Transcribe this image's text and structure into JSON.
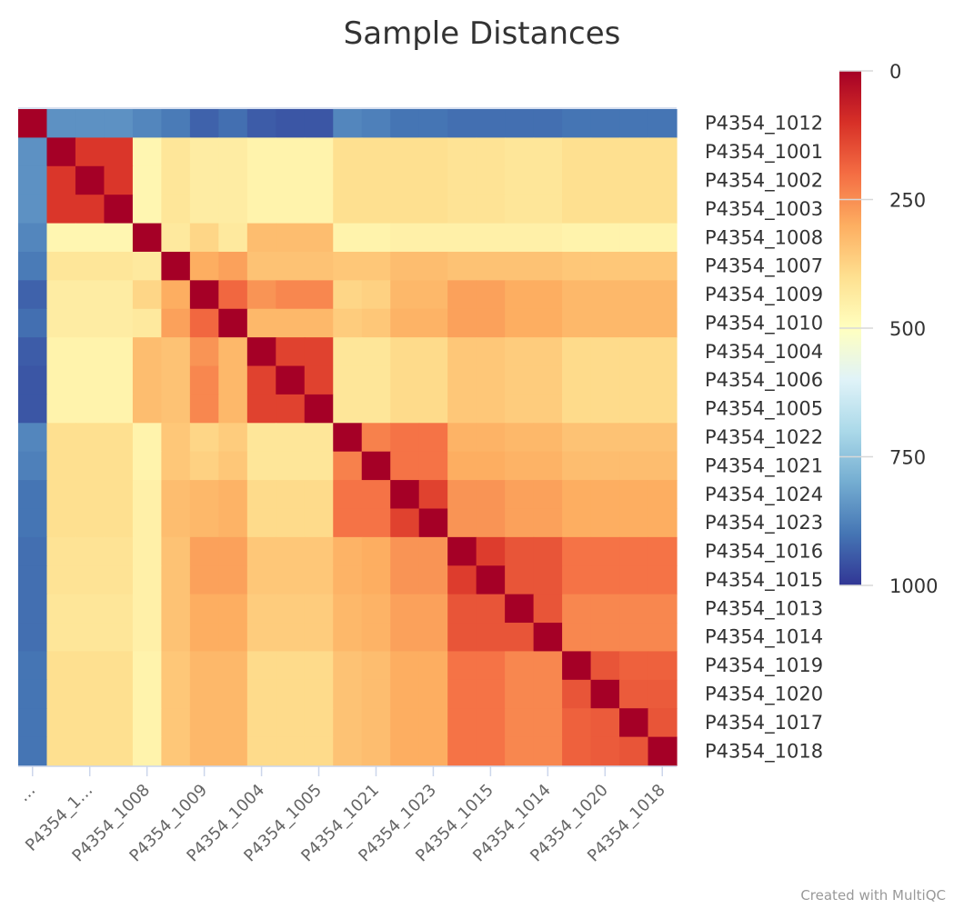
{
  "chart_data": {
    "type": "heatmap",
    "title": "Sample Distances",
    "credit": "Created with MultiQC",
    "y_categories": [
      "P4354_1012",
      "P4354_1001",
      "P4354_1002",
      "P4354_1003",
      "P4354_1008",
      "P4354_1007",
      "P4354_1009",
      "P4354_1010",
      "P4354_1004",
      "P4354_1006",
      "P4354_1005",
      "P4354_1022",
      "P4354_1021",
      "P4354_1024",
      "P4354_1023",
      "P4354_1016",
      "P4354_1015",
      "P4354_1013",
      "P4354_1014",
      "P4354_1019",
      "P4354_1020",
      "P4354_1017",
      "P4354_1018"
    ],
    "x_tick_labels": [
      "…",
      "P4354_1…",
      "P4354_1008",
      "P4354_1009",
      "P4354_1004",
      "P4354_1005",
      "P4354_1021",
      "P4354_1023",
      "P4354_1015",
      "P4354_1014",
      "P4354_1020",
      "P4354_1018"
    ],
    "color_scale": {
      "min": 0,
      "max": 1000,
      "ticks": [
        "0",
        "250",
        "500",
        "750",
        "1000"
      ],
      "stops": [
        {
          "pos": 0.0,
          "color": "#a50026"
        },
        {
          "pos": 0.1,
          "color": "#d73027"
        },
        {
          "pos": 0.2,
          "color": "#f46d43"
        },
        {
          "pos": 0.3,
          "color": "#fdae61"
        },
        {
          "pos": 0.4,
          "color": "#fee090"
        },
        {
          "pos": 0.5,
          "color": "#ffffbf"
        },
        {
          "pos": 0.6,
          "color": "#e0f3f8"
        },
        {
          "pos": 0.7,
          "color": "#abd9e9"
        },
        {
          "pos": 0.8,
          "color": "#74add1"
        },
        {
          "pos": 0.9,
          "color": "#4575b4"
        },
        {
          "pos": 1.0,
          "color": "#313695"
        }
      ]
    },
    "values": [
      [
        0,
        850,
        850,
        850,
        870,
        890,
        930,
        910,
        940,
        950,
        950,
        870,
        880,
        900,
        900,
        910,
        910,
        910,
        910,
        900,
        900,
        900,
        900
      ],
      [
        850,
        0,
        110,
        110,
        470,
        420,
        440,
        440,
        460,
        460,
        460,
        400,
        400,
        400,
        400,
        410,
        410,
        420,
        420,
        400,
        400,
        400,
        400
      ],
      [
        850,
        110,
        0,
        110,
        470,
        420,
        440,
        440,
        460,
        460,
        460,
        400,
        400,
        400,
        400,
        410,
        410,
        420,
        420,
        400,
        400,
        400,
        400
      ],
      [
        850,
        110,
        110,
        0,
        470,
        420,
        440,
        440,
        460,
        460,
        460,
        400,
        400,
        400,
        400,
        410,
        410,
        420,
        420,
        400,
        400,
        400,
        400
      ],
      [
        870,
        470,
        470,
        470,
        0,
        430,
        380,
        430,
        330,
        330,
        330,
        460,
        460,
        450,
        450,
        450,
        450,
        450,
        450,
        460,
        460,
        460,
        460
      ],
      [
        890,
        420,
        420,
        420,
        430,
        0,
        300,
        280,
        340,
        340,
        340,
        350,
        350,
        330,
        330,
        340,
        340,
        340,
        340,
        350,
        350,
        350,
        350
      ],
      [
        930,
        440,
        440,
        440,
        380,
        300,
        0,
        190,
        260,
        240,
        240,
        380,
        370,
        320,
        320,
        280,
        280,
        300,
        300,
        320,
        320,
        320,
        320
      ],
      [
        910,
        440,
        440,
        440,
        430,
        280,
        190,
        0,
        320,
        320,
        320,
        360,
        350,
        310,
        310,
        280,
        280,
        300,
        300,
        320,
        320,
        320,
        320
      ],
      [
        940,
        460,
        460,
        460,
        330,
        340,
        260,
        320,
        0,
        130,
        130,
        420,
        420,
        390,
        390,
        350,
        350,
        360,
        360,
        390,
        390,
        390,
        390
      ],
      [
        950,
        460,
        460,
        460,
        330,
        340,
        240,
        320,
        130,
        0,
        130,
        420,
        420,
        390,
        390,
        350,
        350,
        360,
        360,
        390,
        390,
        390,
        390
      ],
      [
        950,
        460,
        460,
        460,
        330,
        340,
        240,
        320,
        130,
        130,
        0,
        420,
        420,
        390,
        390,
        350,
        350,
        360,
        360,
        390,
        390,
        390,
        390
      ],
      [
        870,
        400,
        400,
        400,
        460,
        350,
        380,
        360,
        420,
        420,
        420,
        0,
        230,
        210,
        210,
        310,
        310,
        320,
        320,
        340,
        340,
        340,
        340
      ],
      [
        880,
        400,
        400,
        400,
        460,
        350,
        370,
        350,
        420,
        420,
        420,
        230,
        0,
        210,
        210,
        300,
        300,
        310,
        310,
        330,
        330,
        330,
        330
      ],
      [
        900,
        400,
        400,
        400,
        450,
        330,
        320,
        310,
        390,
        390,
        390,
        210,
        210,
        0,
        130,
        260,
        260,
        280,
        280,
        300,
        300,
        300,
        300
      ],
      [
        900,
        400,
        400,
        400,
        450,
        330,
        320,
        310,
        390,
        390,
        390,
        210,
        210,
        130,
        0,
        260,
        260,
        280,
        280,
        300,
        300,
        300,
        300
      ],
      [
        910,
        410,
        410,
        410,
        450,
        340,
        280,
        280,
        350,
        350,
        350,
        310,
        300,
        260,
        260,
        0,
        120,
        160,
        160,
        210,
        210,
        210,
        210
      ],
      [
        910,
        410,
        410,
        410,
        450,
        340,
        280,
        280,
        350,
        350,
        350,
        310,
        300,
        260,
        260,
        120,
        0,
        160,
        160,
        210,
        210,
        210,
        210
      ],
      [
        910,
        420,
        420,
        420,
        450,
        340,
        300,
        300,
        360,
        360,
        360,
        320,
        310,
        280,
        280,
        160,
        160,
        0,
        160,
        240,
        240,
        240,
        240
      ],
      [
        910,
        420,
        420,
        420,
        450,
        340,
        300,
        300,
        360,
        360,
        360,
        320,
        310,
        280,
        280,
        160,
        160,
        160,
        0,
        240,
        240,
        240,
        240
      ],
      [
        900,
        400,
        400,
        400,
        460,
        350,
        320,
        320,
        390,
        390,
        390,
        340,
        330,
        300,
        300,
        210,
        210,
        240,
        240,
        0,
        160,
        180,
        180
      ],
      [
        900,
        400,
        400,
        400,
        460,
        350,
        320,
        320,
        390,
        390,
        390,
        340,
        330,
        300,
        300,
        210,
        210,
        240,
        240,
        160,
        0,
        170,
        170
      ],
      [
        900,
        400,
        400,
        400,
        460,
        350,
        320,
        320,
        390,
        390,
        390,
        340,
        330,
        300,
        300,
        210,
        210,
        240,
        240,
        180,
        170,
        0,
        160
      ],
      [
        900,
        400,
        400,
        400,
        460,
        350,
        320,
        320,
        390,
        390,
        390,
        340,
        330,
        300,
        300,
        210,
        210,
        240,
        240,
        180,
        170,
        160,
        0
      ]
    ]
  }
}
